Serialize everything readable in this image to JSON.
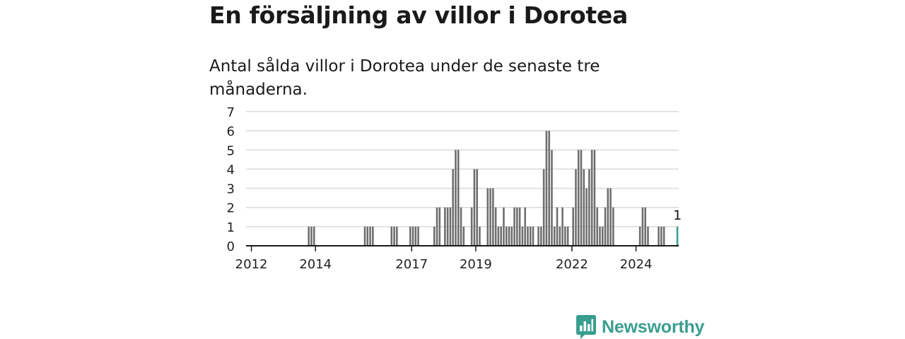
{
  "title": "En försäljning av villor i Dorotea",
  "subtitle": "Antal sålda villor i Dorotea under de senaste tre månaderna.",
  "brand": {
    "name": "Newsworthy",
    "color": "#3a9e8f",
    "icon": "newsworthy-chart-icon"
  },
  "colors": {
    "bar": "#6e6e70",
    "highlight": "#3a9e8f",
    "grid": "#d9d9d9",
    "axis": "#1a1a1a"
  },
  "chart_data": {
    "type": "bar",
    "title": "En försäljning av villor i Dorotea",
    "subtitle": "Antal sålda villor i Dorotea under de senaste tre månaderna.",
    "xlabel": "",
    "ylabel": "",
    "ylim": [
      0,
      7
    ],
    "yticks": [
      0,
      1,
      2,
      3,
      4,
      5,
      6,
      7
    ],
    "xticks": [
      {
        "label": "2012",
        "month": "2012-01"
      },
      {
        "label": "2014",
        "month": "2014-01"
      },
      {
        "label": "2017",
        "month": "2017-01"
      },
      {
        "label": "2019",
        "month": "2019-01"
      },
      {
        "label": "2022",
        "month": "2022-01"
      },
      {
        "label": "2024",
        "month": "2024-01"
      }
    ],
    "grid": true,
    "start_month": "2011-11",
    "end_month": "2025-04",
    "highlight": {
      "month": "2025-04",
      "value": 1,
      "label": "1"
    },
    "bars": [
      {
        "month": "2013-10",
        "value": 1
      },
      {
        "month": "2013-11",
        "value": 1
      },
      {
        "month": "2013-12",
        "value": 1
      },
      {
        "month": "2015-07",
        "value": 1
      },
      {
        "month": "2015-08",
        "value": 1
      },
      {
        "month": "2015-09",
        "value": 1
      },
      {
        "month": "2015-10",
        "value": 1
      },
      {
        "month": "2016-05",
        "value": 1
      },
      {
        "month": "2016-06",
        "value": 1
      },
      {
        "month": "2016-07",
        "value": 1
      },
      {
        "month": "2016-12",
        "value": 1
      },
      {
        "month": "2017-01",
        "value": 1
      },
      {
        "month": "2017-02",
        "value": 1
      },
      {
        "month": "2017-03",
        "value": 1
      },
      {
        "month": "2017-09",
        "value": 1
      },
      {
        "month": "2017-10",
        "value": 2
      },
      {
        "month": "2017-11",
        "value": 2
      },
      {
        "month": "2018-01",
        "value": 2
      },
      {
        "month": "2018-02",
        "value": 2
      },
      {
        "month": "2018-03",
        "value": 2
      },
      {
        "month": "2018-04",
        "value": 4
      },
      {
        "month": "2018-05",
        "value": 5
      },
      {
        "month": "2018-06",
        "value": 5
      },
      {
        "month": "2018-07",
        "value": 2
      },
      {
        "month": "2018-08",
        "value": 1
      },
      {
        "month": "2018-11",
        "value": 2
      },
      {
        "month": "2018-12",
        "value": 4
      },
      {
        "month": "2019-01",
        "value": 4
      },
      {
        "month": "2019-02",
        "value": 1
      },
      {
        "month": "2019-05",
        "value": 3
      },
      {
        "month": "2019-06",
        "value": 3
      },
      {
        "month": "2019-07",
        "value": 3
      },
      {
        "month": "2019-08",
        "value": 2
      },
      {
        "month": "2019-09",
        "value": 1
      },
      {
        "month": "2019-10",
        "value": 1
      },
      {
        "month": "2019-11",
        "value": 2
      },
      {
        "month": "2019-12",
        "value": 1
      },
      {
        "month": "2020-01",
        "value": 1
      },
      {
        "month": "2020-02",
        "value": 1
      },
      {
        "month": "2020-03",
        "value": 2
      },
      {
        "month": "2020-04",
        "value": 2
      },
      {
        "month": "2020-05",
        "value": 2
      },
      {
        "month": "2020-06",
        "value": 1
      },
      {
        "month": "2020-07",
        "value": 2
      },
      {
        "month": "2020-08",
        "value": 1
      },
      {
        "month": "2020-09",
        "value": 1
      },
      {
        "month": "2020-10",
        "value": 1
      },
      {
        "month": "2020-12",
        "value": 1
      },
      {
        "month": "2021-01",
        "value": 1
      },
      {
        "month": "2021-02",
        "value": 4
      },
      {
        "month": "2021-03",
        "value": 6
      },
      {
        "month": "2021-04",
        "value": 6
      },
      {
        "month": "2021-05",
        "value": 5
      },
      {
        "month": "2021-06",
        "value": 1
      },
      {
        "month": "2021-07",
        "value": 2
      },
      {
        "month": "2021-08",
        "value": 1
      },
      {
        "month": "2021-09",
        "value": 2
      },
      {
        "month": "2021-10",
        "value": 1
      },
      {
        "month": "2021-11",
        "value": 1
      },
      {
        "month": "2022-01",
        "value": 2
      },
      {
        "month": "2022-02",
        "value": 4
      },
      {
        "month": "2022-03",
        "value": 5
      },
      {
        "month": "2022-04",
        "value": 5
      },
      {
        "month": "2022-05",
        "value": 4
      },
      {
        "month": "2022-06",
        "value": 3
      },
      {
        "month": "2022-07",
        "value": 4
      },
      {
        "month": "2022-08",
        "value": 5
      },
      {
        "month": "2022-09",
        "value": 5
      },
      {
        "month": "2022-10",
        "value": 2
      },
      {
        "month": "2022-11",
        "value": 1
      },
      {
        "month": "2022-12",
        "value": 1
      },
      {
        "month": "2023-01",
        "value": 2
      },
      {
        "month": "2023-02",
        "value": 3
      },
      {
        "month": "2023-03",
        "value": 3
      },
      {
        "month": "2023-04",
        "value": 2
      },
      {
        "month": "2024-02",
        "value": 1
      },
      {
        "month": "2024-03",
        "value": 2
      },
      {
        "month": "2024-04",
        "value": 2
      },
      {
        "month": "2024-05",
        "value": 1
      },
      {
        "month": "2024-09",
        "value": 1
      },
      {
        "month": "2024-10",
        "value": 1
      },
      {
        "month": "2024-11",
        "value": 1
      },
      {
        "month": "2025-04",
        "value": 1,
        "highlight": true
      }
    ]
  }
}
